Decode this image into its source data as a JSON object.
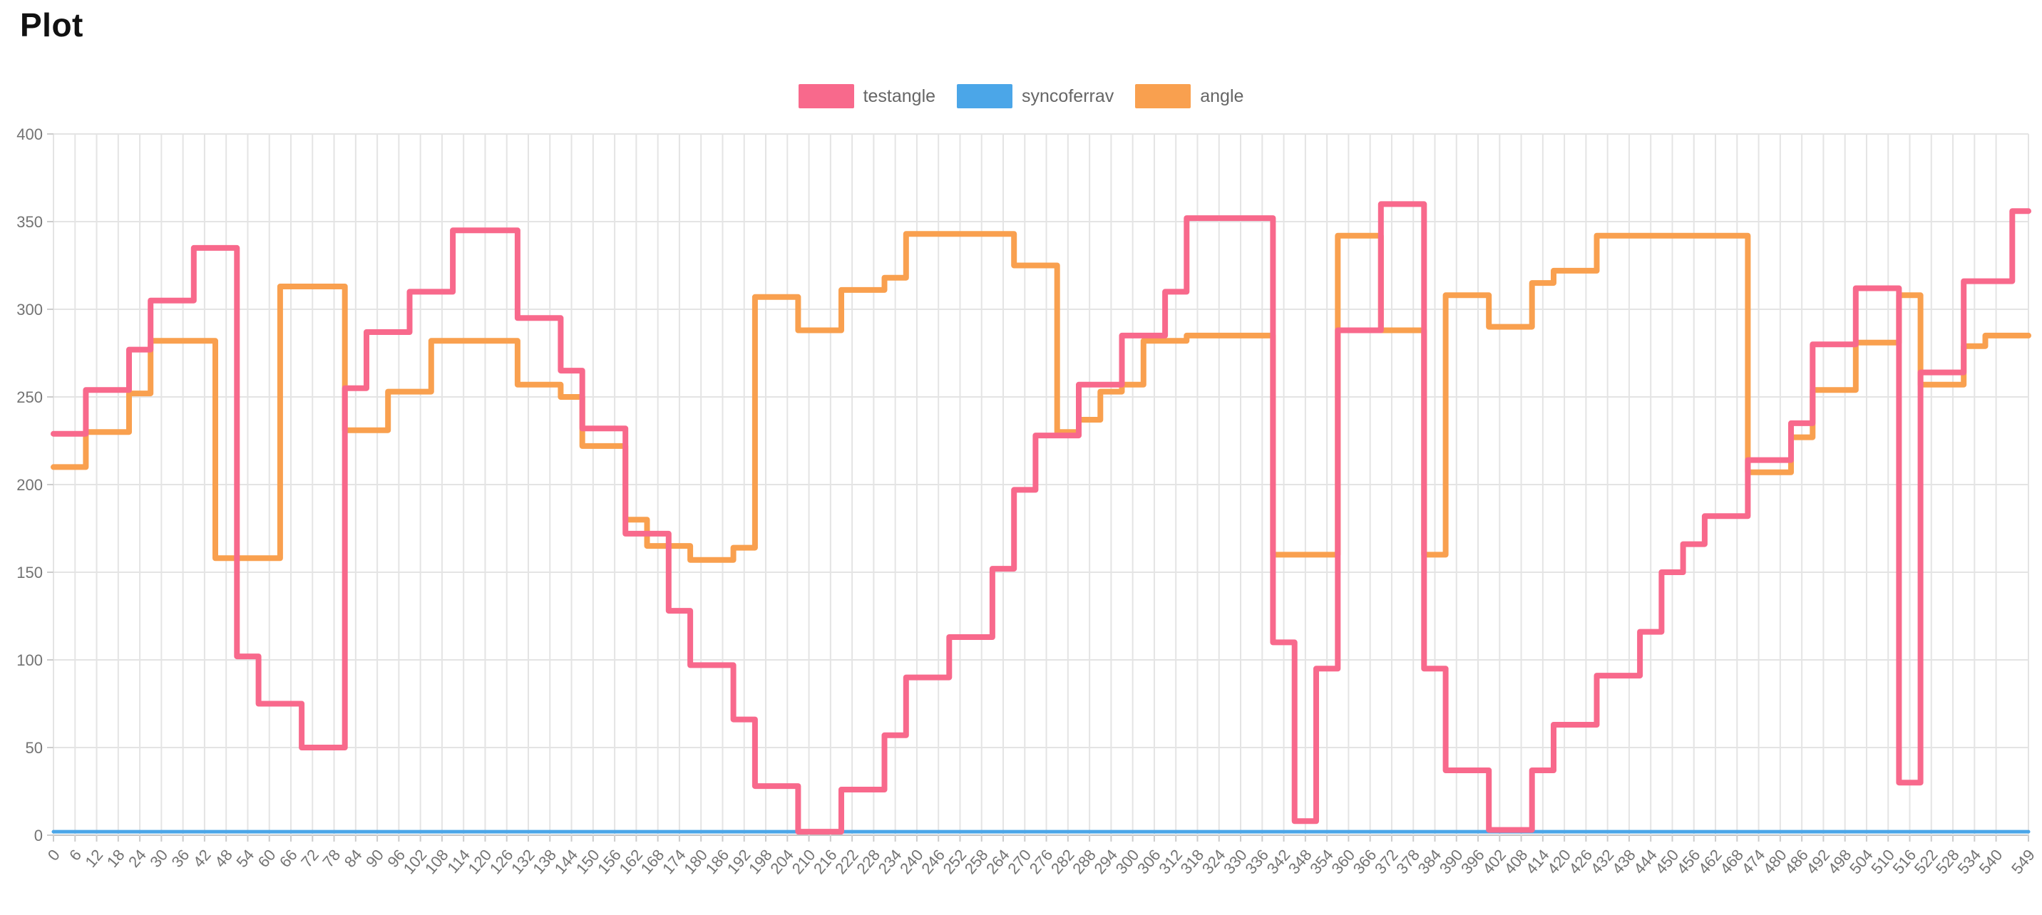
{
  "page": {
    "title": "Plot"
  },
  "legend": {
    "items": [
      {
        "label": "testangle",
        "color": "#f8698c"
      },
      {
        "label": "syncoferrav",
        "color": "#4ba6e8"
      },
      {
        "label": "angle",
        "color": "#f9a04f"
      }
    ]
  },
  "chart_data": {
    "type": "line",
    "title": "Plot",
    "line_style": "step",
    "grid": true,
    "legend_position": "top-center",
    "xlabel": "",
    "ylabel": "",
    "ylim": [
      0,
      400
    ],
    "y_ticks": [
      0,
      50,
      100,
      150,
      200,
      250,
      300,
      350,
      400
    ],
    "x": [
      0,
      6,
      12,
      18,
      24,
      30,
      36,
      42,
      48,
      54,
      60,
      66,
      72,
      78,
      84,
      90,
      96,
      102,
      108,
      114,
      120,
      126,
      132,
      138,
      144,
      150,
      156,
      162,
      168,
      174,
      180,
      186,
      192,
      198,
      204,
      210,
      216,
      222,
      228,
      234,
      240,
      246,
      252,
      258,
      264,
      270,
      276,
      282,
      288,
      294,
      300,
      306,
      312,
      318,
      324,
      330,
      336,
      342,
      348,
      354,
      360,
      366,
      372,
      378,
      384,
      390,
      396,
      402,
      408,
      414,
      420,
      426,
      432,
      438,
      444,
      450,
      456,
      462,
      468,
      474,
      480,
      486,
      492,
      498,
      504,
      510,
      516,
      522,
      528,
      534,
      540,
      549
    ],
    "series": [
      {
        "name": "testangle",
        "color": "#f8698c",
        "width": 8,
        "values": [
          229,
          229,
          254,
          254,
          277,
          305,
          305,
          335,
          335,
          102,
          75,
          75,
          50,
          50,
          255,
          287,
          287,
          310,
          310,
          345,
          345,
          345,
          295,
          295,
          265,
          232,
          232,
          172,
          172,
          128,
          97,
          97,
          66,
          28,
          28,
          2,
          2,
          26,
          26,
          57,
          90,
          90,
          113,
          113,
          152,
          197,
          228,
          228,
          257,
          257,
          285,
          285,
          310,
          352,
          352,
          352,
          352,
          110,
          8,
          95,
          288,
          288,
          360,
          360,
          95,
          37,
          37,
          3,
          3,
          37,
          63,
          63,
          91,
          91,
          116,
          150,
          166,
          182,
          182,
          214,
          214,
          235,
          280,
          280,
          312,
          312,
          30,
          264,
          264,
          316,
          316,
          356
        ]
      },
      {
        "name": "syncoferrav",
        "color": "#4ba6e8",
        "width": 5,
        "values": [
          2,
          2,
          2,
          2,
          2,
          2,
          2,
          2,
          2,
          2,
          2,
          2,
          2,
          2,
          2,
          2,
          2,
          2,
          2,
          2,
          2,
          2,
          2,
          2,
          2,
          2,
          2,
          2,
          2,
          2,
          2,
          2,
          2,
          2,
          2,
          2,
          2,
          2,
          2,
          2,
          2,
          2,
          2,
          2,
          2,
          2,
          2,
          2,
          2,
          2,
          2,
          2,
          2,
          2,
          2,
          2,
          2,
          2,
          2,
          2,
          2,
          2,
          2,
          2,
          2,
          2,
          2,
          2,
          2,
          2,
          2,
          2,
          2,
          2,
          2,
          2,
          2,
          2,
          2,
          2,
          2,
          2,
          2,
          2,
          2,
          2,
          2,
          2,
          2,
          2,
          2,
          2
        ]
      },
      {
        "name": "angle",
        "color": "#f9a04f",
        "width": 8,
        "values": [
          210,
          210,
          230,
          230,
          252,
          282,
          282,
          282,
          158,
          158,
          158,
          313,
          313,
          313,
          231,
          231,
          253,
          253,
          282,
          282,
          282,
          282,
          257,
          257,
          250,
          222,
          222,
          180,
          165,
          165,
          157,
          157,
          164,
          307,
          307,
          288,
          288,
          311,
          311,
          318,
          343,
          343,
          343,
          343,
          343,
          325,
          325,
          230,
          237,
          253,
          257,
          282,
          282,
          285,
          285,
          285,
          285,
          160,
          160,
          160,
          342,
          342,
          288,
          288,
          160,
          308,
          308,
          290,
          290,
          315,
          322,
          322,
          342,
          342,
          342,
          342,
          342,
          342,
          342,
          207,
          207,
          227,
          254,
          254,
          281,
          281,
          308,
          257,
          257,
          279,
          285,
          285
        ]
      }
    ],
    "style": {
      "grid_color": "#e4e4e4",
      "baseline_color": "#c6c6c6",
      "tick_color": "#cccccc",
      "axis_label_color": "#737373",
      "x_label_rotation": -50
    }
  }
}
